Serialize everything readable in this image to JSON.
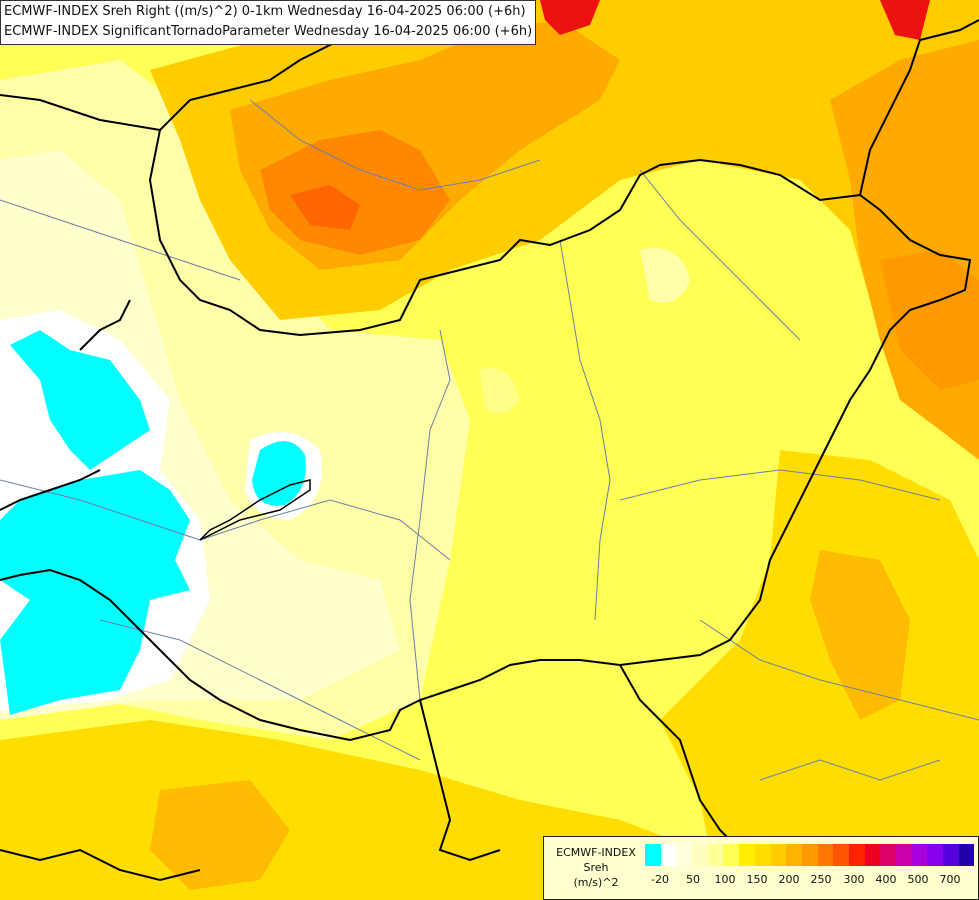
{
  "title_lines": [
    "ECMWF-INDEX Sreh Right ((m/s)^2) 0-1km Wednesday 16-04-2025 06:00 (+6h)",
    "ECMWF-INDEX SignificantTornadoParameter Wednesday 16-04-2025 06:00 (+6h)"
  ],
  "legend": {
    "label_lines": [
      "ECMWF-INDEX",
      "Sreh",
      "(m/s)^2"
    ],
    "colors": [
      "#00ffff",
      "#ffffff",
      "#ffffdd",
      "#ffffbb",
      "#ffff99",
      "#ffff55",
      "#ffee00",
      "#ffdd00",
      "#ffcc00",
      "#ffb300",
      "#ff9900",
      "#ff7700",
      "#ff5500",
      "#ff2200",
      "#ee0022",
      "#dd0066",
      "#cc00aa",
      "#aa00dd",
      "#8800ee",
      "#5500dd",
      "#2200aa"
    ],
    "ticks": [
      "-20",
      "50",
      "100",
      "150",
      "200",
      "250",
      "300",
      "400",
      "500",
      "700"
    ]
  },
  "colors": {
    "cyan": "#00ffff",
    "pale_yellow": "#ffffaa",
    "yellow": "#ffff55",
    "gold": "#ffdd00",
    "orange": "#ffb300",
    "dark_orange": "#ff8800",
    "red_orange": "#ff5500",
    "red": "#ee1111"
  }
}
